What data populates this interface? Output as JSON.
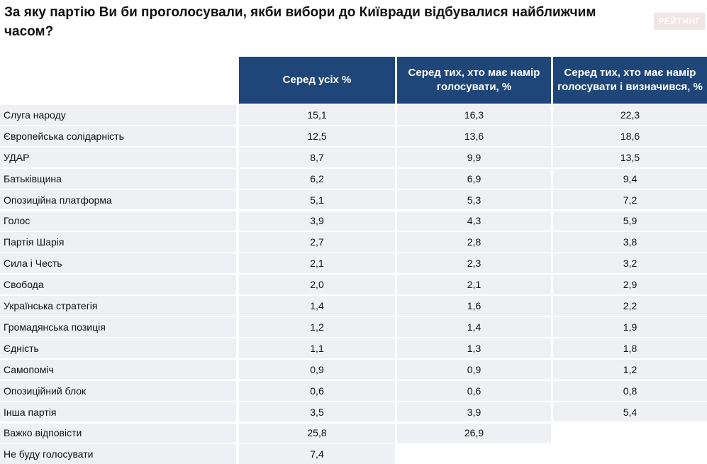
{
  "header": {
    "title": "За яку партію Ви би проголосували, якби вибори до Київради відбувалися найближчим часом?",
    "logo": "РЕЙТИНГ"
  },
  "table": {
    "columns": [
      "Серед усіх %",
      "Серед тих, хто має намір голосувати, %",
      "Серед тих, хто має намір голосувати і визначився, %"
    ],
    "rows": [
      {
        "label": "Слуга народу",
        "values": [
          "15,1",
          "16,3",
          "22,3"
        ]
      },
      {
        "label": "Європейська солідарність",
        "values": [
          "12,5",
          "13,6",
          "18,6"
        ]
      },
      {
        "label": "УДАР",
        "values": [
          "8,7",
          "9,9",
          "13,5"
        ]
      },
      {
        "label": "Батьківщина",
        "values": [
          "6,2",
          "6,9",
          "9,4"
        ]
      },
      {
        "label": "Опозиційна платформа",
        "values": [
          "5,1",
          "5,3",
          "7,2"
        ]
      },
      {
        "label": "Голос",
        "values": [
          "3,9",
          "4,3",
          "5,9"
        ]
      },
      {
        "label": "Партія Шарія",
        "values": [
          "2,7",
          "2,8",
          "3,8"
        ]
      },
      {
        "label": "Сила і Честь",
        "values": [
          "2,1",
          "2,3",
          "3,2"
        ]
      },
      {
        "label": "Свобода",
        "values": [
          "2,0",
          "2,1",
          "2,9"
        ]
      },
      {
        "label": "Українська стратегія",
        "values": [
          "1,4",
          "1,6",
          "2,2"
        ]
      },
      {
        "label": "Громадянська позиція",
        "values": [
          "1,2",
          "1,4",
          "1,9"
        ]
      },
      {
        "label": "Єдність",
        "values": [
          "1,1",
          "1,3",
          "1,8"
        ]
      },
      {
        "label": "Самопоміч",
        "values": [
          "0,9",
          "0,9",
          "1,2"
        ]
      },
      {
        "label": "Опозиційний блок",
        "values": [
          "0,6",
          "0,6",
          "0,8"
        ]
      },
      {
        "label": "Інша партія",
        "values": [
          "3,5",
          "3,9",
          "5,4"
        ]
      },
      {
        "label": "Важко відповісти",
        "values": [
          "25,8",
          "26,9"
        ]
      },
      {
        "label": "Не буду голосувати",
        "values": [
          "7,4"
        ]
      }
    ]
  }
}
